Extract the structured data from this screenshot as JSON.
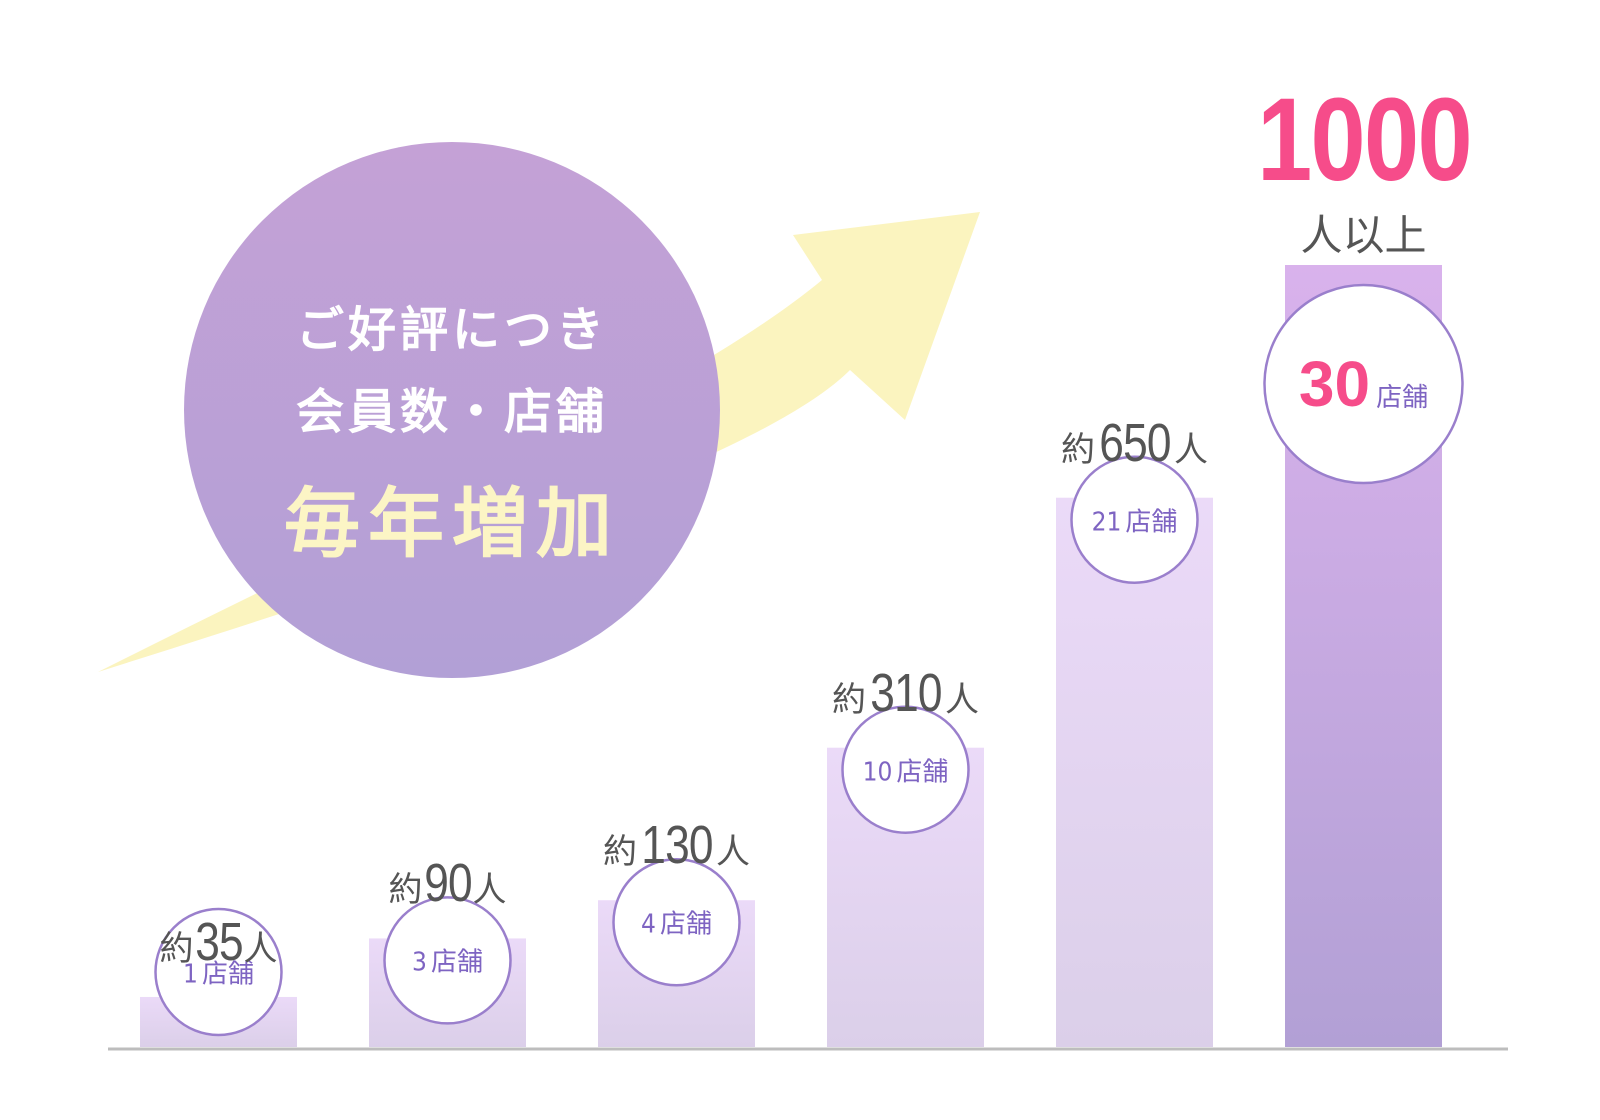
{
  "colors": {
    "bar_top": "#ebdaf8",
    "bar_bottom": "#dbcfe9",
    "last_bar_top": "#d9b2ec",
    "last_bar_bottom": "#b2a0d5",
    "badge_border": "#9a7fcc",
    "badge_text": "#7e64c2",
    "highlight": "#f64c8a",
    "label_gray": "#555555",
    "circle_top": "#c4a1d6",
    "circle_bottom": "#b2a0d6",
    "arrow": "#fbf4bf",
    "headline_light": "#fcf5c5",
    "baseline": "#bdbdbd"
  },
  "headline": {
    "line1": "ご好評につき",
    "line2": "会員数・店舗",
    "line3": "毎年増加"
  },
  "chart_data": {
    "type": "bar",
    "categories": [
      "",
      "",
      "",
      "",
      "",
      ""
    ],
    "series": [
      {
        "values": [
          35,
          90,
          130,
          310,
          650,
          1000
        ]
      }
    ],
    "member_labels": [
      {
        "prefix": "約",
        "value": "35",
        "suffix": "人"
      },
      {
        "prefix": "約",
        "value": "90",
        "suffix": "人"
      },
      {
        "prefix": "約",
        "value": "130",
        "suffix": "人"
      },
      {
        "prefix": "約",
        "value": "310",
        "suffix": "人"
      },
      {
        "prefix": "約",
        "value": "650",
        "suffix": "人"
      },
      {
        "prefix": "",
        "value": "1000",
        "suffix": "人以上"
      }
    ],
    "store_counts": [
      {
        "num": "1",
        "unit": "店舗"
      },
      {
        "num": "3",
        "unit": "店舗"
      },
      {
        "num": "4",
        "unit": "店舗"
      },
      {
        "num": "10",
        "unit": "店舗"
      },
      {
        "num": "21",
        "unit": "店舗"
      },
      {
        "num": "30",
        "unit": "店舗"
      }
    ],
    "ylim": [
      0,
      1000
    ],
    "grid": false,
    "xlabel": "",
    "ylabel": ""
  }
}
